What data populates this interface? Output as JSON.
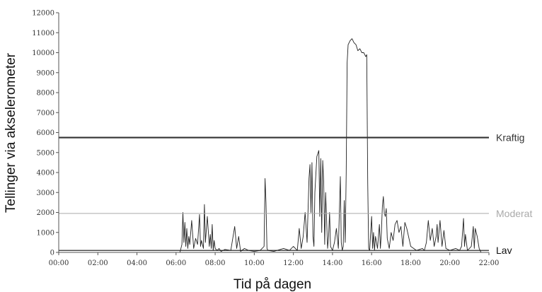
{
  "chart_data": {
    "type": "line",
    "xlabel": "Tid på dagen",
    "ylabel": "Tellinger via akselerometer",
    "xlim": [
      0,
      22
    ],
    "ylim": [
      0,
      12000
    ],
    "x_ticks": [
      "00:00",
      "02:00",
      "04:00",
      "06:00",
      "08:00",
      "10:00",
      "12:00",
      "14:00",
      "16:00",
      "18:00",
      "20:00",
      "22:00"
    ],
    "y_ticks": [
      "0",
      "1000",
      "2000",
      "3000",
      "4000",
      "5000",
      "6000",
      "7000",
      "8000",
      "9000",
      "10000",
      "11000",
      "12000"
    ],
    "grid": false,
    "reference_lines": [
      {
        "label": "Kraftig",
        "value": 5750,
        "color": "#333333"
      },
      {
        "label": "Moderat",
        "value": 1950,
        "color": "#aaaaaa"
      },
      {
        "label": "Lav",
        "value": 100,
        "color": "#111111"
      }
    ],
    "series": [
      {
        "color": "#222222",
        "x": [
          0,
          6.2,
          6.3,
          6.35,
          6.4,
          6.45,
          6.5,
          6.55,
          6.6,
          6.65,
          6.7,
          6.8,
          6.9,
          7.0,
          7.1,
          7.2,
          7.25,
          7.3,
          7.4,
          7.45,
          7.5,
          7.6,
          7.7,
          7.75,
          7.8,
          7.85,
          7.9,
          7.95,
          8.0,
          8.1,
          8.2,
          8.3,
          8.5,
          8.8,
          9.0,
          9.1,
          9.2,
          9.3,
          9.5,
          9.7,
          10.0,
          10.3,
          10.5,
          10.55,
          10.6,
          10.65,
          10.7,
          11.0,
          11.5,
          11.8,
          12.0,
          12.2,
          12.3,
          12.4,
          12.5,
          12.6,
          12.7,
          12.8,
          12.85,
          12.9,
          12.95,
          13.0,
          13.05,
          13.1,
          13.2,
          13.3,
          13.35,
          13.4,
          13.45,
          13.5,
          13.55,
          13.6,
          13.65,
          13.7,
          13.75,
          13.8,
          13.85,
          13.9,
          14.0,
          14.1,
          14.2,
          14.3,
          14.4,
          14.45,
          14.5,
          14.55,
          14.6,
          14.65,
          14.7,
          14.75,
          14.8,
          14.9,
          15.0,
          15.1,
          15.2,
          15.3,
          15.4,
          15.5,
          15.6,
          15.7,
          15.75,
          15.8,
          15.85,
          15.9,
          16.0,
          16.05,
          16.1,
          16.15,
          16.2,
          16.3,
          16.4,
          16.45,
          16.5,
          16.55,
          16.6,
          16.65,
          16.7,
          16.75,
          16.8,
          16.9,
          17.0,
          17.1,
          17.2,
          17.3,
          17.4,
          17.5,
          17.6,
          17.7,
          17.8,
          18.0,
          18.3,
          18.6,
          18.7,
          18.8,
          18.9,
          19.0,
          19.1,
          19.2,
          19.3,
          19.35,
          19.4,
          19.5,
          19.6,
          19.7,
          19.8,
          20.0,
          20.3,
          20.5,
          20.6,
          20.7,
          20.75,
          20.8,
          20.9,
          21.0,
          21.1,
          21.2,
          21.25,
          21.3,
          21.4,
          21.5,
          21.6,
          22.0
        ],
        "values": [
          0,
          0,
          400,
          2000,
          500,
          1500,
          300,
          1200,
          200,
          800,
          400,
          1600,
          200,
          700,
          400,
          1900,
          300,
          600,
          200,
          2400,
          500,
          1800,
          300,
          900,
          200,
          1400,
          100,
          600,
          200,
          100,
          200,
          50,
          150,
          100,
          1300,
          200,
          800,
          50,
          200,
          100,
          50,
          100,
          300,
          3700,
          2500,
          200,
          100,
          50,
          200,
          100,
          300,
          100,
          1200,
          200,
          800,
          2000,
          500,
          3700,
          4400,
          2000,
          4500,
          800,
          300,
          3000,
          4800,
          5100,
          1800,
          4700,
          1000,
          4600,
          3500,
          400,
          3000,
          1600,
          200,
          800,
          2000,
          300,
          100,
          500,
          1200,
          200,
          3800,
          500,
          100,
          300,
          2600,
          500,
          4000,
          9500,
          10400,
          10600,
          10700,
          10500,
          10400,
          10100,
          10200,
          10000,
          10000,
          9800,
          9900,
          3500,
          200,
          100,
          1800,
          200,
          1000,
          100,
          800,
          200,
          1400,
          200,
          1000,
          2300,
          2800,
          2000,
          1800,
          2200,
          700,
          200,
          1000,
          600,
          1400,
          1600,
          1000,
          1300,
          300,
          1500,
          1200,
          300,
          100,
          200,
          100,
          500,
          1600,
          600,
          1200,
          300,
          800,
          1400,
          500,
          1600,
          300,
          1100,
          200,
          100,
          200,
          100,
          300,
          1700,
          300,
          900,
          100,
          200,
          300,
          1300,
          200,
          1200,
          800,
          200,
          0,
          0
        ]
      }
    ]
  }
}
